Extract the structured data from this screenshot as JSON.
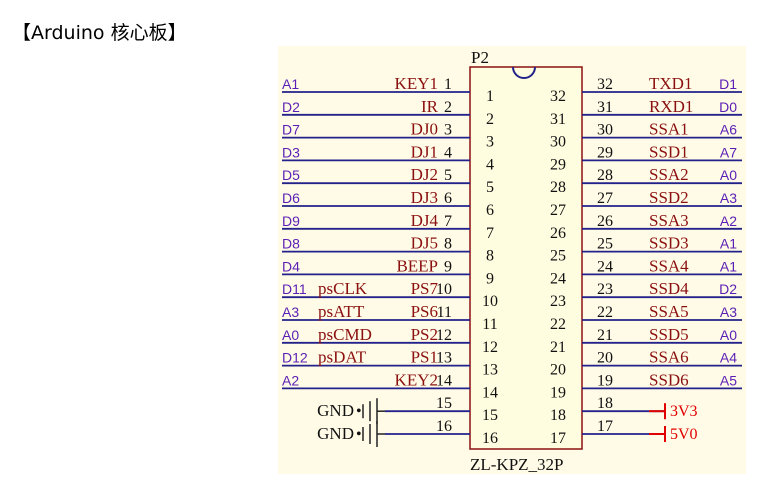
{
  "title": "【Arduino 核心板】",
  "colors": {
    "panel": "#fffbe7",
    "wire": "#22228a",
    "net_label": "#5b1fb5",
    "signal": "#8b1010",
    "power": "#e00000"
  },
  "component": {
    "designator": "P2",
    "part": "ZL-KPZ_32P"
  },
  "left_pins": [
    {
      "pin": "1",
      "signal": "KEY1",
      "num": "1",
      "net": "A1",
      "ps": ""
    },
    {
      "pin": "2",
      "signal": "IR",
      "num": "2",
      "net": "D2",
      "ps": ""
    },
    {
      "pin": "3",
      "signal": "DJ0",
      "num": "3",
      "net": "D7",
      "ps": ""
    },
    {
      "pin": "4",
      "signal": "DJ1",
      "num": "4",
      "net": "D3",
      "ps": ""
    },
    {
      "pin": "5",
      "signal": "DJ2",
      "num": "5",
      "net": "D5",
      "ps": ""
    },
    {
      "pin": "6",
      "signal": "DJ3",
      "num": "6",
      "net": "D6",
      "ps": ""
    },
    {
      "pin": "7",
      "signal": "DJ4",
      "num": "7",
      "net": "D9",
      "ps": ""
    },
    {
      "pin": "8",
      "signal": "DJ5",
      "num": "8",
      "net": "D8",
      "ps": ""
    },
    {
      "pin": "9",
      "signal": "BEEP",
      "num": "9",
      "net": "D4",
      "ps": ""
    },
    {
      "pin": "10",
      "signal": "PS7",
      "num": "10",
      "net": "D11",
      "ps": "psCLK"
    },
    {
      "pin": "11",
      "signal": "PS6",
      "num": "11",
      "net": "A3",
      "ps": "psATT"
    },
    {
      "pin": "12",
      "signal": "PS2",
      "num": "12",
      "net": "A0",
      "ps": "psCMD"
    },
    {
      "pin": "13",
      "signal": "PS1",
      "num": "13",
      "net": "D12",
      "ps": "psDAT"
    },
    {
      "pin": "14",
      "signal": "KEY2",
      "num": "14",
      "net": "A2",
      "ps": ""
    },
    {
      "pin": "15",
      "signal": "GND",
      "num": "15",
      "net": "",
      "ps": ""
    },
    {
      "pin": "16",
      "signal": "GND",
      "num": "16",
      "net": "",
      "ps": ""
    }
  ],
  "right_pins": [
    {
      "pin": "32",
      "num": "32",
      "signal": "TXD1",
      "net": "D1"
    },
    {
      "pin": "31",
      "num": "31",
      "signal": "RXD1",
      "net": "D0"
    },
    {
      "pin": "30",
      "num": "30",
      "signal": "SSA1",
      "net": "A6"
    },
    {
      "pin": "29",
      "num": "29",
      "signal": "SSD1",
      "net": "A7"
    },
    {
      "pin": "28",
      "num": "28",
      "signal": "SSA2",
      "net": "A0"
    },
    {
      "pin": "27",
      "num": "27",
      "signal": "SSD2",
      "net": "A3"
    },
    {
      "pin": "26",
      "num": "26",
      "signal": "SSA3",
      "net": "A2"
    },
    {
      "pin": "25",
      "num": "25",
      "signal": "SSD3",
      "net": "A1"
    },
    {
      "pin": "24",
      "num": "24",
      "signal": "SSA4",
      "net": "A1"
    },
    {
      "pin": "23",
      "num": "23",
      "signal": "SSD4",
      "net": "D2"
    },
    {
      "pin": "22",
      "num": "22",
      "signal": "SSA5",
      "net": "A3"
    },
    {
      "pin": "21",
      "num": "21",
      "signal": "SSD5",
      "net": "A0"
    },
    {
      "pin": "20",
      "num": "20",
      "signal": "SSA6",
      "net": "A4"
    },
    {
      "pin": "19",
      "num": "19",
      "signal": "SSD6",
      "net": "A5"
    },
    {
      "pin": "18",
      "num": "18",
      "signal": "3V3",
      "net": ""
    },
    {
      "pin": "17",
      "num": "17",
      "signal": "5V0",
      "net": ""
    }
  ]
}
